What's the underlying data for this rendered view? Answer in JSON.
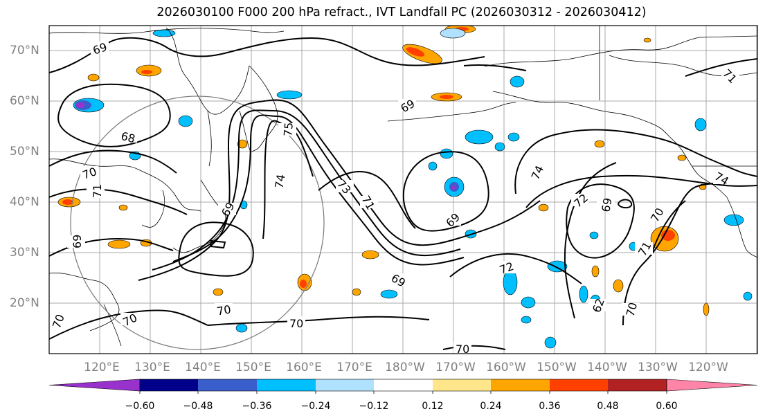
{
  "title": "2026030100 F000 200 hPa refract., IVT Landfall PC (2026030312 - 2026030412)",
  "latitude_labels": [
    "70°N",
    "60°N",
    "50°N",
    "40°N",
    "30°N",
    "20°N"
  ],
  "longitude_labels": [
    "120°E",
    "130°E",
    "140°E",
    "150°E",
    "160°E",
    "170°E",
    "180°W",
    "170°W",
    "160°W",
    "150°W",
    "140°W",
    "130°W",
    "120°W"
  ],
  "colorbar": {
    "tick_labels": [
      "−0.60",
      "−0.48",
      "−0.36",
      "−0.24",
      "−0.12",
      "0.12",
      "0.24",
      "0.36",
      "0.48",
      "0.60"
    ],
    "colors": [
      "#9932cc",
      "#00008b",
      "#3a5fcd",
      "#00bfff",
      "#b0e2ff",
      "#ffffff",
      "#ffe68a",
      "#ffa500",
      "#ff4000",
      "#b22222",
      "#ff85a8"
    ]
  },
  "contour_labels": [
    "69",
    "69",
    "68",
    "70",
    "71",
    "69",
    "69",
    "70",
    "70",
    "70",
    "74",
    "73",
    "75",
    "71",
    "69",
    "69",
    "74",
    "72",
    "72",
    "69",
    "70",
    "71",
    "70",
    "71",
    "70",
    "74",
    "62"
  ],
  "contour_color": "#000000",
  "coastline_color": "#000000",
  "gridline_color": "#a0a0a0",
  "circle_color": "#808080"
}
